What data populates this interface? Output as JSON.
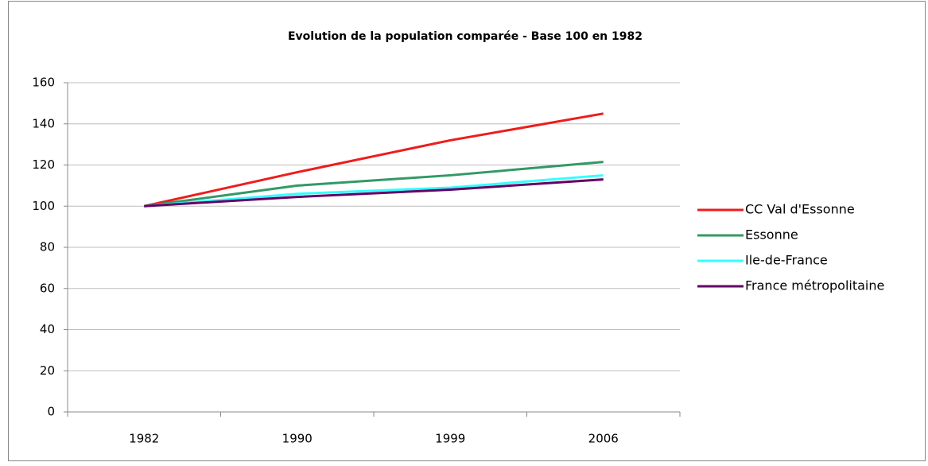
{
  "chart_data": {
    "type": "line",
    "title": "Evolution de la population comparée - Base 100 en 1982",
    "categories": [
      "1982",
      "1990",
      "1999",
      "2006"
    ],
    "series": [
      {
        "name": "CC Val d'Essonne",
        "color": "#ee1c1c",
        "values": [
          100,
          116.5,
          132,
          145
        ]
      },
      {
        "name": "Essonne",
        "color": "#339966",
        "values": [
          100,
          110,
          115,
          121.5
        ]
      },
      {
        "name": "Ile-de-France",
        "color": "#33ffff",
        "values": [
          100,
          106,
          109,
          115
        ]
      },
      {
        "name": "France métropolitaine",
        "color": "#660066",
        "values": [
          100,
          104.5,
          108,
          113
        ]
      }
    ],
    "ylim": [
      0,
      160
    ],
    "yticks": [
      0,
      20,
      40,
      60,
      80,
      100,
      120,
      140,
      160
    ],
    "grid": true,
    "legend": "right"
  }
}
